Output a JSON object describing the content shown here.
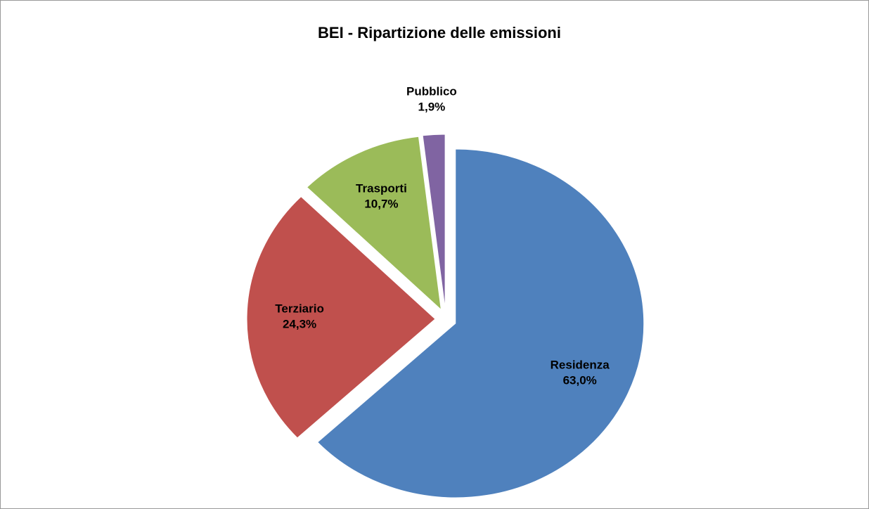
{
  "chart_data": {
    "type": "pie",
    "title": "BEI - Ripartizione delle emissioni",
    "categories": [
      "Residenza",
      "Terziario",
      "Trasporti",
      "Pubblico"
    ],
    "values": [
      63.0,
      24.3,
      10.7,
      1.9
    ],
    "value_labels": [
      "63,0%",
      "24,3%",
      "10,7%",
      "1,9%"
    ],
    "colors": [
      "#4f81bd",
      "#c0504d",
      "#9bbb59",
      "#8064a2"
    ],
    "exploded": true
  }
}
